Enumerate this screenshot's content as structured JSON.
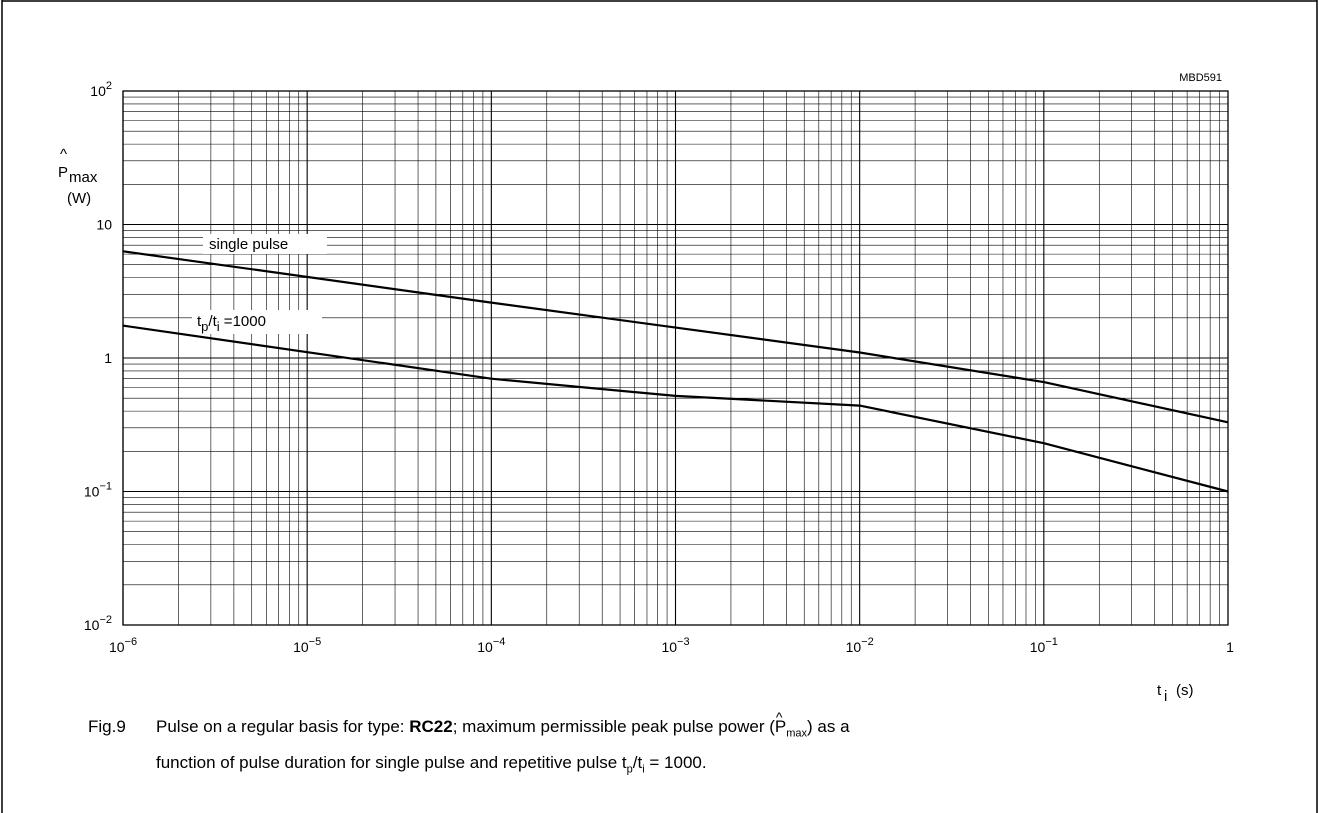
{
  "figure_code": "MBD591",
  "chart_data": {
    "type": "line",
    "x_scale": "log",
    "y_scale": "log",
    "xlim": [
      1e-06,
      1
    ],
    "ylim": [
      0.01,
      100
    ],
    "x_ticks": [
      {
        "value": 1e-06,
        "base": "10",
        "exp": "−6"
      },
      {
        "value": 1e-05,
        "base": "10",
        "exp": "−5"
      },
      {
        "value": 0.0001,
        "base": "10",
        "exp": "−4"
      },
      {
        "value": 0.001,
        "base": "10",
        "exp": "−3"
      },
      {
        "value": 0.01,
        "base": "10",
        "exp": "−2"
      },
      {
        "value": 0.1,
        "base": "10",
        "exp": "−1"
      },
      {
        "value": 1,
        "base": "1",
        "exp": ""
      }
    ],
    "y_ticks": [
      {
        "value": 0.01,
        "base": "10",
        "exp": "−2"
      },
      {
        "value": 0.1,
        "base": "10",
        "exp": "−1"
      },
      {
        "value": 1,
        "base": "1",
        "exp": ""
      },
      {
        "value": 10,
        "base": "10",
        "exp": ""
      },
      {
        "value": 100,
        "base": "10",
        "exp": "2"
      }
    ],
    "ylabel": {
      "symbol": "P",
      "hat": "^",
      "sub": "max",
      "unit": "(W)"
    },
    "xlabel": {
      "symbol": "t",
      "sub": "i",
      "unit": "(s)"
    },
    "grid": true,
    "series": [
      {
        "name": "single pulse",
        "x": [
          1e-06,
          0.0001,
          0.01,
          0.1,
          1
        ],
        "y": [
          6.3,
          2.6,
          1.1,
          0.66,
          0.33
        ]
      },
      {
        "name": "tp/ti =1000",
        "label_parts": {
          "t1": "t",
          "s1": "p",
          "slash": "/t",
          "s2": "i",
          "rest": " =1000"
        },
        "x": [
          1e-06,
          0.0001,
          0.001,
          0.01,
          0.1,
          1
        ],
        "y": [
          1.75,
          0.7,
          0.52,
          0.44,
          0.23,
          0.1
        ]
      }
    ]
  },
  "caption": {
    "fig": "Fig.9",
    "line1_a": "Pulse on a regular basis for type: ",
    "line1_bold": "RC22",
    "line1_b": "; maximum permissible peak pulse power (",
    "line1_sym": "P",
    "line1_sub": "max",
    "line1_c": ") as a",
    "line2_a": "function of pulse duration for single pulse and repetitive pulse t",
    "line2_sub1": "p",
    "line2_b": "/t",
    "line2_sub2": "i",
    "line2_c": " = 1000."
  }
}
